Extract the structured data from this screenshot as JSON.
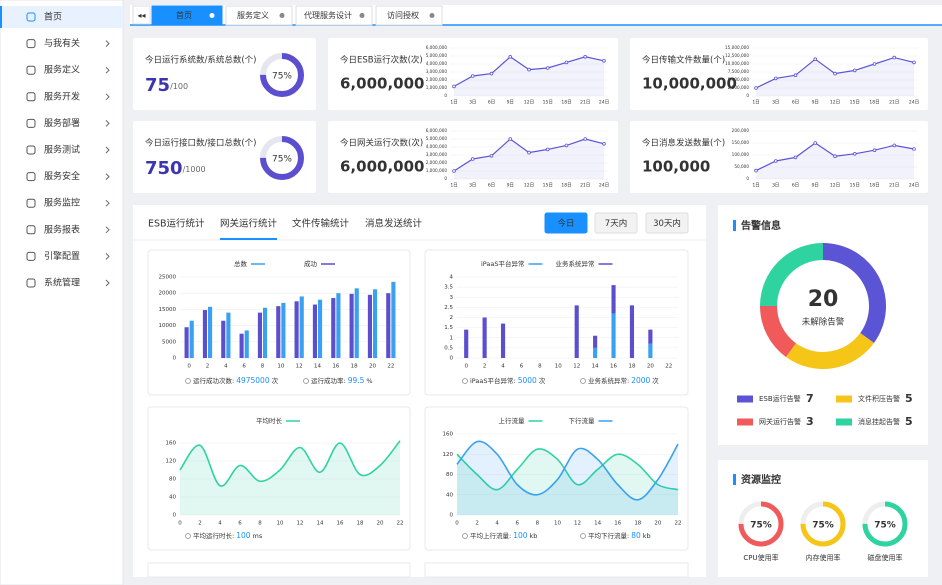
{
  "sidebar": {
    "items": [
      "首页",
      "与我有关",
      "服务定义",
      "服务开发",
      "服务部署",
      "服务测试",
      "服务安全",
      "服务监控",
      "服务报表",
      "引擎配置",
      "系统管理"
    ],
    "active": 0
  },
  "tabs": {
    "items": [
      "首页",
      "服务定义",
      "代理服务设计",
      "访问授权"
    ],
    "active": 0
  },
  "cards": [
    {
      "title": "今日运行系统数/系统总数(个)",
      "value": "75",
      "total": "/100",
      "gauge": {
        "value": 75,
        "label": "75%"
      }
    },
    {
      "title": "今日ESB运行次数(次)",
      "value": "6,000,000",
      "chart": {
        "type": "line",
        "categories": [
          "1日",
          "3日",
          "6日",
          "9日",
          "12日",
          "15日",
          "18日",
          "21日",
          "24日"
        ],
        "values": [
          1200000,
          2500000,
          2800000,
          4900000,
          3300000,
          3500000,
          4200000,
          4900000,
          4400000
        ],
        "ylim": [
          0,
          6000000
        ],
        "yticks": [
          0,
          {
            "value": 1000000,
            "label": "1,000,000"
          },
          {
            "value": 2000000,
            "label": "2,000,000"
          },
          {
            "value": 3000000,
            "label": "3,000,000"
          },
          {
            "value": 4000000,
            "label": "4,000,000"
          },
          {
            "value": 5000000,
            "label": "5,000,000"
          },
          {
            "value": 6000000,
            "label": "6,000,000"
          }
        ],
        "color": "#5b55d6"
      }
    },
    {
      "title": "今日传输文件数量(个)",
      "value": "10,000,000",
      "chart": {
        "type": "line",
        "categories": [
          "1日",
          "3日",
          "6日",
          "9日",
          "12日",
          "15日",
          "18日",
          "21日",
          "24日"
        ],
        "values": [
          2500000,
          5500000,
          6500000,
          11500000,
          7000000,
          8000000,
          10000000,
          12000000,
          10500000
        ],
        "ylim": [
          0,
          15000000
        ],
        "yticks": [
          0,
          {
            "value": 2500000,
            "label": "2,500,000"
          },
          {
            "value": 5000000,
            "label": "5,000,000"
          },
          {
            "value": 7500000,
            "label": "7,500,000"
          },
          {
            "value": 10000000,
            "label": "10,000,000"
          },
          {
            "value": 12500000,
            "label": "12,500,000"
          },
          {
            "value": 15000000,
            "label": "15,000,000"
          }
        ],
        "color": "#5b55d6"
      }
    },
    {
      "title": "今日运行接口数/接口总数(个)",
      "value": "750",
      "total": "/1000",
      "gauge": {
        "value": 75,
        "label": "75%"
      }
    },
    {
      "title": "今日网关运行次数(次)",
      "value": "6,000,000",
      "chart": {
        "type": "line",
        "categories": [
          "1日",
          "3日",
          "6日",
          "9日",
          "12日",
          "15日",
          "18日",
          "21日",
          "24日"
        ],
        "values": [
          1000000,
          2500000,
          2900000,
          5000000,
          3300000,
          3700000,
          4200000,
          5000000,
          4400000
        ],
        "ylim": [
          0,
          6000000
        ],
        "yticks": [
          0,
          {
            "value": 1000000,
            "label": "1,000,000"
          },
          {
            "value": 2000000,
            "label": "2,000,000"
          },
          {
            "value": 3000000,
            "label": "3,000,000"
          },
          {
            "value": 4000000,
            "label": "4,000,000"
          },
          {
            "value": 5000000,
            "label": "5,000,000"
          },
          {
            "value": 6000000,
            "label": "6,000,000"
          }
        ],
        "color": "#5b55d6"
      }
    },
    {
      "title": "今日消息发送数量(个)",
      "value": "100,000",
      "chart": {
        "type": "line",
        "categories": [
          "1日",
          "3日",
          "6日",
          "9日",
          "12日",
          "15日",
          "18日",
          "21日",
          "24日"
        ],
        "values": [
          35000,
          75000,
          90000,
          150000,
          95000,
          105000,
          120000,
          140000,
          125000
        ],
        "ylim": [
          0,
          200000
        ],
        "yticks": [
          0,
          {
            "value": 50000,
            "label": "50,000"
          },
          {
            "value": 100000,
            "label": "100,000"
          },
          {
            "value": 150000,
            "label": "150,000"
          },
          {
            "value": 200000,
            "label": "200,000"
          }
        ],
        "color": "#5b55d6"
      }
    }
  ],
  "stats": {
    "tabs": [
      "ESB运行统计",
      "网关运行统计",
      "文件传输统计",
      "消息发送统计"
    ],
    "active": 1,
    "ranges": [
      "今日",
      "7天内",
      "30天内"
    ],
    "active_range": 0,
    "charts": [
      {
        "type": "bar",
        "x": [
          0,
          2,
          4,
          6,
          8,
          10,
          12,
          14,
          16,
          18,
          20,
          22
        ],
        "xlim": [
          -1,
          23
        ],
        "series": [
          {
            "name": "总数",
            "color": "#3aa0f0",
            "values": [
              11500,
              15800,
              14000,
              8500,
              15500,
              17000,
              19000,
              18000,
              20000,
              21500,
              21200,
              23500
            ]
          },
          {
            "name": "成功",
            "color": "#5b4fd0",
            "values": [
              9500,
              14800,
              11500,
              7500,
              14000,
              16000,
              17500,
              16500,
              18500,
              19800,
              19500,
              20000
            ]
          }
        ],
        "ylim": [
          0,
          25000
        ],
        "yticks": [
          0,
          5000,
          10000,
          15000,
          20000,
          25000
        ],
        "footer": [
          {
            "label": "运行成功次数:",
            "value": 4975000,
            "unit": "次"
          },
          {
            "label": "运行成功率:",
            "value": 99.5,
            "unit": "%"
          }
        ]
      },
      {
        "type": "bar",
        "stacked": true,
        "x": [
          0,
          2,
          4,
          6,
          8,
          10,
          12,
          14,
          16,
          18,
          20,
          22
        ],
        "xlim": [
          -1,
          23
        ],
        "series": [
          {
            "name": "iPaaS平台异常",
            "color": "#3aa0f0",
            "values": [
              0,
              0,
              0,
              0,
              0,
              0,
              0,
              0.5,
              2.2,
              0,
              0.7,
              0
            ]
          },
          {
            "name": "业务系统异常",
            "color": "#5b4fd0",
            "values": [
              1.4,
              2.0,
              1.7,
              0,
              0,
              0,
              2.6,
              0.6,
              1.4,
              2.6,
              0.7,
              0
            ]
          }
        ],
        "ylim": [
          0,
          4
        ],
        "yticks": [
          0,
          0.5,
          1,
          1.5,
          2,
          2.5,
          3,
          3.5,
          4
        ],
        "footer": [
          {
            "label": "iPaaS平台异常:",
            "value": 5000,
            "unit": "次"
          },
          {
            "label": "业务系统异常:",
            "value": 2000,
            "unit": "次"
          }
        ]
      },
      {
        "type": "line",
        "smooth": true,
        "area": true,
        "x": [
          0,
          2,
          4,
          6,
          8,
          10,
          12,
          14,
          16,
          18,
          20,
          22
        ],
        "xlim": [
          0,
          22
        ],
        "series": [
          {
            "name": "平均时长",
            "color": "#2ed3a0",
            "values": [
              100,
              155,
              65,
              110,
              75,
              100,
              150,
              95,
              160,
              90,
              110,
              165
            ]
          }
        ],
        "ylim": [
          0,
          180
        ],
        "yticks": [
          0,
          40,
          80,
          120,
          160
        ],
        "footer": [
          {
            "label": "平均运行时长:",
            "value": 100,
            "unit": "ms"
          }
        ]
      },
      {
        "type": "line",
        "smooth": true,
        "area": true,
        "x": [
          0,
          2,
          4,
          6,
          8,
          10,
          12,
          14,
          16,
          18,
          20,
          22
        ],
        "xlim": [
          0,
          22
        ],
        "series": [
          {
            "name": "上行流量",
            "color": "#2ed3a0",
            "values": [
              120,
              80,
              50,
              90,
              130,
              110,
              60,
              90,
              120,
              100,
              60,
              50
            ]
          },
          {
            "name": "下行流量",
            "color": "#3aa0f0",
            "values": [
              100,
              145,
              120,
              60,
              40,
              70,
              130,
              110,
              60,
              30,
              70,
              140
            ]
          }
        ],
        "ylim": [
          0,
          160
        ],
        "yticks": [
          0,
          40,
          80,
          120,
          160
        ],
        "footer": [
          {
            "label": "平均上行流量:",
            "value": 100,
            "unit": "kb"
          },
          {
            "label": "平均下行流量:",
            "value": 80,
            "unit": "kb"
          }
        ]
      }
    ]
  },
  "alerts": {
    "title": "告警信息",
    "total": 20,
    "total_label": "未解除告警",
    "chart": {
      "type": "pie",
      "categories": [
        "ESB运行告警",
        "文件积压告警",
        "网关运行告警",
        "消息挂起告警"
      ],
      "values": [
        7,
        5,
        3,
        5
      ],
      "colors": [
        "#5b55d6",
        "#f5c518",
        "#f05a5a",
        "#2ed3a0"
      ]
    }
  },
  "resources": {
    "title": "资源监控",
    "items": [
      {
        "name": "CPU使用率",
        "value": 75,
        "label": "75%",
        "color": "#f05a5a"
      },
      {
        "name": "内存使用率",
        "value": 75,
        "label": "75%",
        "color": "#f5c518"
      },
      {
        "name": "磁盘使用率",
        "value": 75,
        "label": "75%",
        "color": "#2ed3a0"
      }
    ]
  }
}
